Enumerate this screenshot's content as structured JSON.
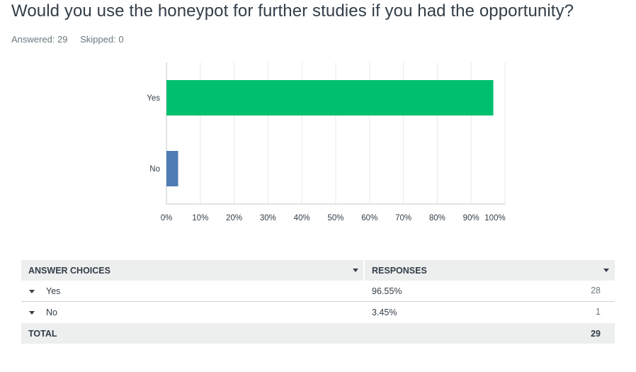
{
  "question": {
    "title": "Would you use the honeypot for further studies if you had the opportunity?"
  },
  "stats": {
    "answered": "Answered: 29",
    "skipped": "Skipped: 0"
  },
  "chart_data": {
    "type": "bar",
    "orientation": "horizontal",
    "categories": [
      "Yes",
      "No"
    ],
    "values": [
      96.55,
      3.45
    ],
    "colors": [
      "#00bf6f",
      "#507cb6"
    ],
    "xlim": [
      0,
      100
    ],
    "xticks": [
      "0%",
      "10%",
      "20%",
      "30%",
      "40%",
      "50%",
      "60%",
      "70%",
      "80%",
      "90%",
      "100%"
    ],
    "grid": true
  },
  "table": {
    "headers": {
      "choices": "ANSWER CHOICES",
      "responses": "RESPONSES"
    },
    "rows": [
      {
        "label": "Yes",
        "percent": "96.55%",
        "count": "28"
      },
      {
        "label": "No",
        "percent": "3.45%",
        "count": "1"
      }
    ],
    "total": {
      "label": "TOTAL",
      "count": "29"
    }
  }
}
